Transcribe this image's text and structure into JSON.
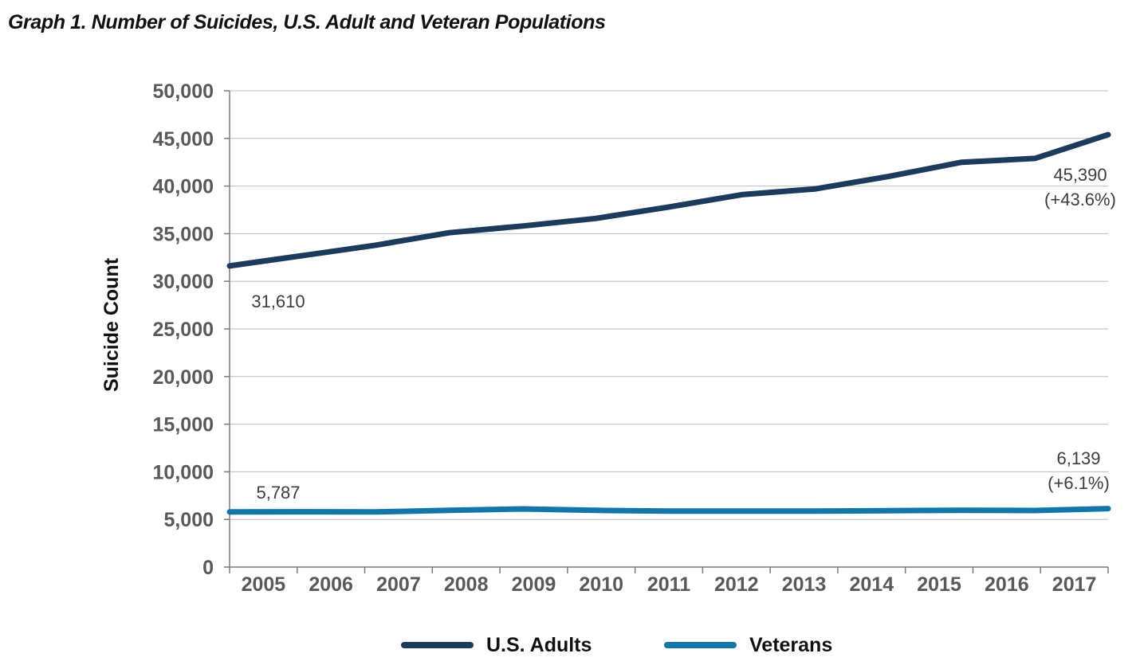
{
  "chart_data": {
    "type": "line",
    "title": "Graph 1. Number of Suicides, U.S. Adult and Veteran Populations",
    "xlabel": "",
    "ylabel": "Suicide Count",
    "categories": [
      "2005",
      "2006",
      "2007",
      "2008",
      "2009",
      "2010",
      "2011",
      "2012",
      "2013",
      "2014",
      "2015",
      "2016",
      "2017"
    ],
    "ylim": [
      0,
      50000
    ],
    "yticks": [
      0,
      5000,
      10000,
      15000,
      20000,
      25000,
      30000,
      35000,
      40000,
      45000,
      50000
    ],
    "ytick_labels": [
      "0",
      "5,000",
      "10,000",
      "15,000",
      "20,000",
      "25,000",
      "30,000",
      "35,000",
      "40,000",
      "45,000",
      "50,000"
    ],
    "grid": "horizontal",
    "legend_position": "bottom-center",
    "series": [
      {
        "name": "U.S. Adults",
        "color": "#1b3a5c",
        "values": [
          31610,
          32700,
          33800,
          35100,
          35800,
          36600,
          37800,
          39100,
          39700,
          41000,
          42500,
          42900,
          45390
        ]
      },
      {
        "name": "Veterans",
        "color": "#1277a8",
        "values": [
          5787,
          5800,
          5790,
          5950,
          6100,
          5950,
          5870,
          5880,
          5880,
          5920,
          5960,
          5940,
          6139
        ]
      }
    ],
    "annotations": [
      {
        "series": 0,
        "category": "2005",
        "lines": [
          "31,610"
        ]
      },
      {
        "series": 0,
        "category": "2017",
        "lines": [
          "45,390",
          "(+43.6%)"
        ]
      },
      {
        "series": 1,
        "category": "2005",
        "lines": [
          "5,787"
        ]
      },
      {
        "series": 1,
        "category": "2017",
        "lines": [
          "6,139",
          "(+6.1%)"
        ]
      }
    ]
  }
}
